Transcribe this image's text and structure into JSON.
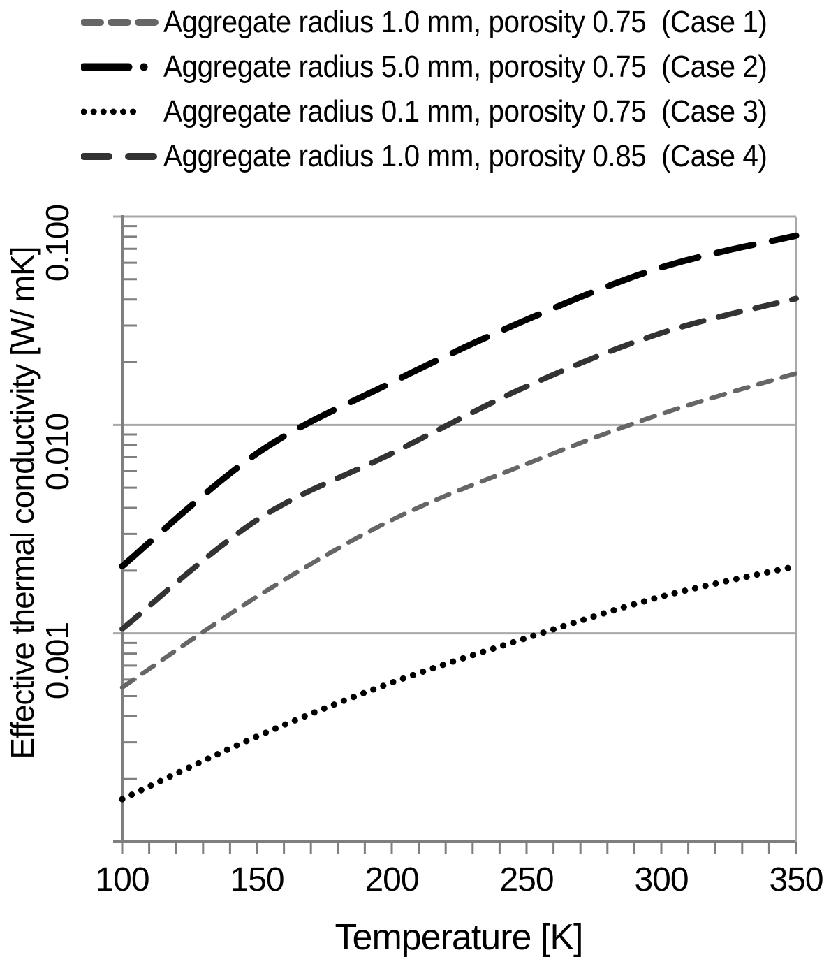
{
  "chart_data": {
    "type": "line",
    "title": "",
    "xlabel": "Temperature [K]",
    "ylabel": "Effective thermal conductivity [W/ mK]",
    "x_scale": "linear",
    "y_scale": "log",
    "xlim": [
      100,
      350
    ],
    "ylim": [
      0.0001,
      0.1
    ],
    "x_tick_labels": [
      "100",
      "150",
      "200",
      "250",
      "300",
      "350"
    ],
    "x_minor_tick_step": 10,
    "y_tick_labels": [
      "0.100",
      "0.010",
      "0.001"
    ],
    "y_gridline_values": [
      0.1,
      0.01,
      0.001
    ],
    "grid": "horizontal major gridlines on, light gray",
    "legend_position": "top-left above plot",
    "x": [
      100,
      150,
      200,
      250,
      300,
      350
    ],
    "series": [
      {
        "label": "Aggregate radius 1.0 mm, porosity 0.75  (Case 1)",
        "case_tag": "Case 1",
        "color": "#666666",
        "line_style": "short-dash",
        "values": [
          0.00055,
          0.0015,
          0.0035,
          0.0065,
          0.0113,
          0.0177
        ]
      },
      {
        "label": "Aggregate radius 5.0 mm, porosity 0.75  (Case 2)",
        "case_tag": "Case 2",
        "color": "#000000",
        "line_style": "long-dash-dot",
        "values": [
          0.0021,
          0.0073,
          0.016,
          0.032,
          0.057,
          0.081
        ]
      },
      {
        "label": "Aggregate radius 0.1 mm, porosity 0.75  (Case 3)",
        "case_tag": "Case 3",
        "color": "#000000",
        "line_style": "dot",
        "values": [
          0.00016,
          0.00032,
          0.00058,
          0.00095,
          0.0015,
          0.0021
        ]
      },
      {
        "label": "Aggregate radius 1.0 mm, porosity 0.85  (Case 4)",
        "case_tag": "Case 4",
        "color": "#333333",
        "line_style": "med-dash",
        "values": [
          0.00105,
          0.0035,
          0.0073,
          0.0153,
          0.0276,
          0.0404
        ]
      }
    ],
    "colors": {
      "gridline": "#a8a8a8",
      "axis": "#7f7f7f",
      "text": "#000000"
    }
  }
}
